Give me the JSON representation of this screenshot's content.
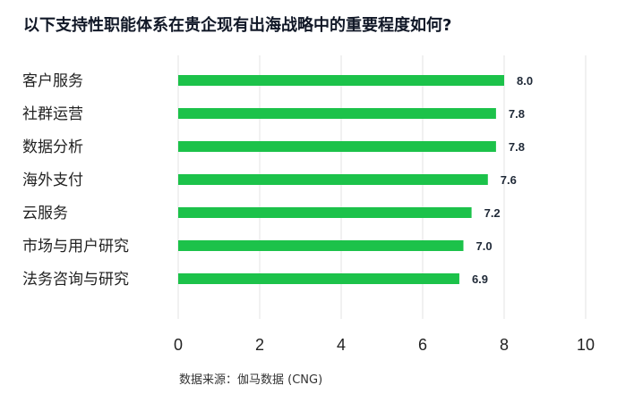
{
  "title": "以下支持性职能体系在贵企现有出海战略中的重要程度如何?",
  "source": "数据来源：伽马数据 (CNG)",
  "colors": {
    "bar": "#1cc24a",
    "grid": "#e3e3e3",
    "text": "#222222"
  },
  "chart_data": {
    "type": "bar",
    "orientation": "horizontal",
    "title": "以下支持性职能体系在贵企现有出海战略中的重要程度如何?",
    "categories": [
      "客户服务",
      "社群运营",
      "数据分析",
      "海外支付",
      "云服务",
      "市场与用户研究",
      "法务咨询与研究"
    ],
    "values": [
      8.0,
      7.8,
      7.8,
      7.6,
      7.2,
      7.0,
      6.9
    ],
    "value_labels": [
      "8.0",
      "7.8",
      "7.8",
      "7.6",
      "7.2",
      "7.0",
      "6.9"
    ],
    "xlim": [
      0,
      10
    ],
    "xticks": [
      "0",
      "2",
      "4",
      "6",
      "8",
      "10"
    ],
    "xlabel": "",
    "ylabel": "",
    "grid": true
  }
}
